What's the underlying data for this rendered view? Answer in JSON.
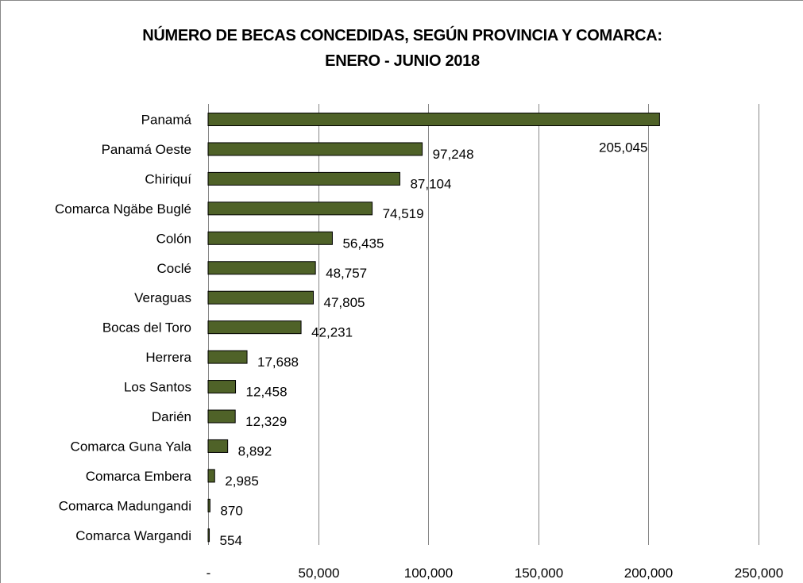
{
  "chart_data": {
    "type": "bar",
    "orientation": "horizontal",
    "title_lines": [
      "NÚMERO DE BECAS CONCEDIDAS, SEGÚN PROVINCIA Y COMARCA:",
      "ENERO - JUNIO 2018"
    ],
    "categories": [
      "Panamá",
      "Panamá Oeste",
      "Chiriquí",
      "Comarca Ngäbe Buglé",
      "Colón",
      "Coclé",
      "Veraguas",
      "Bocas del Toro",
      "Herrera",
      "Los Santos",
      "Darién",
      "Comarca Guna Yala",
      "Comarca Embera",
      "Comarca Madungandi",
      "Comarca Wargandi"
    ],
    "values": [
      205045,
      97248,
      87104,
      74519,
      56435,
      48757,
      47805,
      42231,
      17688,
      12458,
      12329,
      8892,
      2985,
      870,
      554
    ],
    "value_labels": [
      "205,045",
      "97,248",
      "87,104",
      "74,519",
      "56,435",
      "48,757",
      "47,805",
      "42,231",
      "17,688",
      "12,458",
      "12,329",
      "8,892",
      "2,985",
      "870",
      "554"
    ],
    "xlim": [
      0,
      250000
    ],
    "xticks": [
      0,
      50000,
      100000,
      150000,
      200000,
      250000
    ],
    "xtick_labels": [
      "-",
      "50,000",
      "100,000",
      "150,000",
      "200,000",
      "250,000"
    ],
    "grid": "vertical",
    "legend": "none",
    "bar_color": "#4f6228",
    "bar_edge_color": "#000000",
    "grid_color": "#888888"
  }
}
